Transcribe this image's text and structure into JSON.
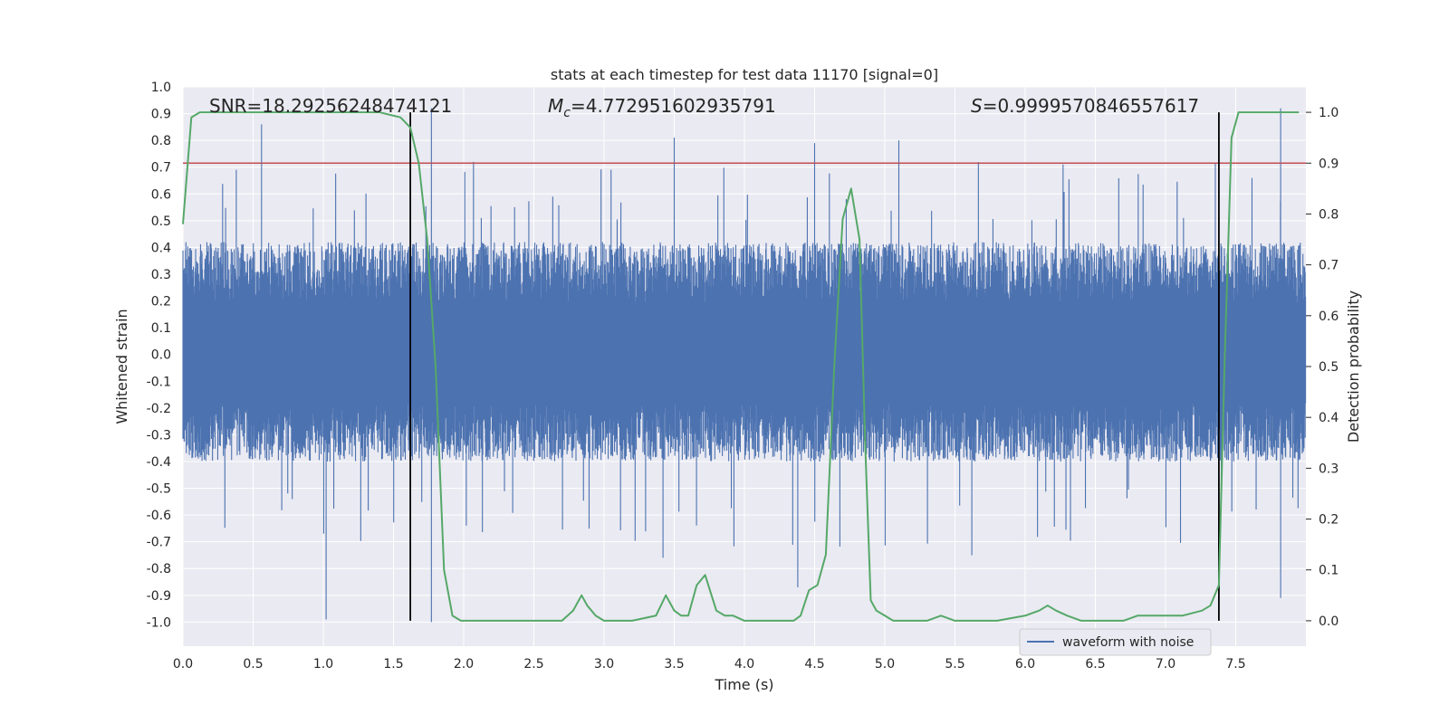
{
  "chart_data": {
    "type": "line",
    "title": "stats at each timestep for test data 11170 [signal=0]",
    "xlabel": "Time (s)",
    "ylabel_left": "Whitened strain",
    "ylabel_right": "Detection probability",
    "xlim": [
      0.0,
      8.0
    ],
    "ylim_left": [
      -1.09,
      1.0
    ],
    "ylim_right": [
      -0.05,
      1.05
    ],
    "x_ticks": [
      "0.0",
      "0.5",
      "1.0",
      "1.5",
      "2.0",
      "2.5",
      "3.0",
      "3.5",
      "4.0",
      "4.5",
      "5.0",
      "5.5",
      "6.0",
      "6.5",
      "7.0",
      "7.5"
    ],
    "x_tick_values": [
      0.0,
      0.5,
      1.0,
      1.5,
      2.0,
      2.5,
      3.0,
      3.5,
      4.0,
      4.5,
      5.0,
      5.5,
      6.0,
      6.5,
      7.0,
      7.5
    ],
    "y_left_ticks": [
      "1.0",
      "0.9",
      "0.8",
      "0.7",
      "0.6",
      "0.5",
      "0.4",
      "0.3",
      "0.2",
      "0.1",
      "0.0",
      "-0.1",
      "-0.2",
      "-0.3",
      "-0.4",
      "-0.5",
      "-0.6",
      "-0.7",
      "-0.8",
      "-0.9",
      "-1.0"
    ],
    "y_left_tick_values": [
      1.0,
      0.9,
      0.8,
      0.7,
      0.6,
      0.5,
      0.4,
      0.3,
      0.2,
      0.1,
      0.0,
      -0.1,
      -0.2,
      -0.3,
      -0.4,
      -0.5,
      -0.6,
      -0.7,
      -0.8,
      -0.9,
      -1.0
    ],
    "y_right_ticks": [
      "1.0",
      "0.9",
      "0.8",
      "0.7",
      "0.6",
      "0.5",
      "0.4",
      "0.3",
      "0.2",
      "0.1",
      "0.0"
    ],
    "y_right_tick_values": [
      1.0,
      0.9,
      0.8,
      0.7,
      0.6,
      0.5,
      0.4,
      0.3,
      0.2,
      0.1,
      0.0
    ],
    "annotations": {
      "snr": "SNR=18.29256248474121",
      "mc_symbol": "M",
      "mc_subscript": "c",
      "mc_value": "=4.772951602935791",
      "s_symbol": "S",
      "s_value": "=0.9999570846557617"
    },
    "threshold": {
      "value": 0.9,
      "axis": "right",
      "color": "#c44e52"
    },
    "vertical_markers": [
      1.62,
      7.38
    ],
    "waveform": {
      "name": "waveform with noise",
      "color": "#4c72b0",
      "samples": 3000,
      "envelope_upper": 0.42,
      "envelope_lower": -0.4,
      "peak_spikes": [
        [
          0.56,
          0.86
        ],
        [
          1.77,
          0.92
        ],
        [
          3.5,
          0.81
        ],
        [
          4.5,
          0.79
        ],
        [
          5.1,
          0.8
        ],
        [
          7.82,
          0.92
        ],
        [
          0.38,
          0.69
        ],
        [
          2.07,
          0.72
        ],
        [
          3.05,
          0.69
        ],
        [
          6.27,
          0.71
        ],
        [
          1.02,
          -0.99
        ],
        [
          1.77,
          -1.0
        ],
        [
          4.38,
          -0.87
        ],
        [
          7.82,
          -0.91
        ],
        [
          3.42,
          -0.76
        ],
        [
          5.62,
          -0.75
        ]
      ]
    },
    "detection_probability": {
      "name": "Detection probability",
      "color": "#55a868",
      "x": [
        0.0,
        0.06,
        0.12,
        0.2,
        0.4,
        0.6,
        0.8,
        1.0,
        1.2,
        1.4,
        1.55,
        1.62,
        1.68,
        1.74,
        1.8,
        1.86,
        1.92,
        1.98,
        2.05,
        2.2,
        2.5,
        2.7,
        2.78,
        2.84,
        2.88,
        2.94,
        3.0,
        3.2,
        3.37,
        3.44,
        3.5,
        3.55,
        3.6,
        3.66,
        3.72,
        3.8,
        3.86,
        3.92,
        4.0,
        4.2,
        4.35,
        4.4,
        4.46,
        4.52,
        4.58,
        4.64,
        4.7,
        4.76,
        4.82,
        4.86,
        4.9,
        4.94,
        5.0,
        5.06,
        5.12,
        5.2,
        5.3,
        5.4,
        5.5,
        5.6,
        5.8,
        6.0,
        6.1,
        6.16,
        6.22,
        6.3,
        6.4,
        6.54,
        6.7,
        6.8,
        6.9,
        7.0,
        7.12,
        7.26,
        7.32,
        7.38,
        7.42,
        7.47,
        7.52,
        7.6,
        7.8,
        7.95
      ],
      "y": [
        0.78,
        0.99,
        1.0,
        1.0,
        1.0,
        1.0,
        1.0,
        1.0,
        1.0,
        1.0,
        0.99,
        0.97,
        0.9,
        0.75,
        0.5,
        0.1,
        0.01,
        0.0,
        0.0,
        0.0,
        0.0,
        0.0,
        0.02,
        0.05,
        0.03,
        0.01,
        0.0,
        0.0,
        0.01,
        0.05,
        0.02,
        0.01,
        0.01,
        0.07,
        0.09,
        0.02,
        0.01,
        0.01,
        0.0,
        0.0,
        0.0,
        0.01,
        0.06,
        0.07,
        0.13,
        0.5,
        0.79,
        0.85,
        0.75,
        0.35,
        0.04,
        0.02,
        0.01,
        0.0,
        0.0,
        0.0,
        0.0,
        0.01,
        0.0,
        0.0,
        0.0,
        0.01,
        0.02,
        0.03,
        0.02,
        0.01,
        0.0,
        0.0,
        0.0,
        0.01,
        0.01,
        0.01,
        0.01,
        0.02,
        0.03,
        0.07,
        0.5,
        0.95,
        1.0,
        1.0,
        1.0,
        1.0
      ]
    },
    "legend": {
      "position": "lower-right",
      "entries": [
        "waveform with noise"
      ]
    },
    "grid": true
  }
}
